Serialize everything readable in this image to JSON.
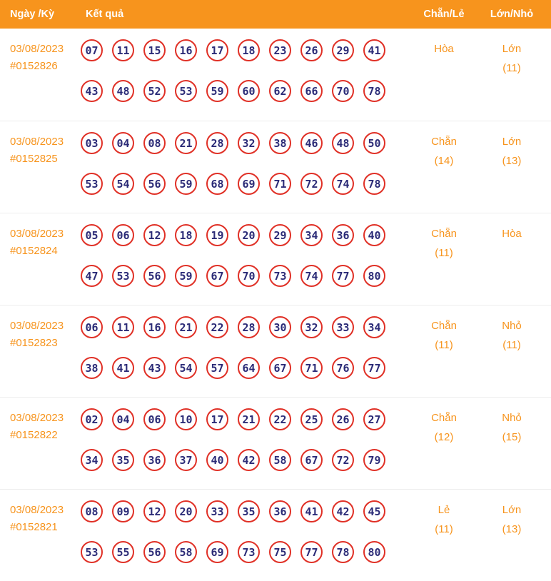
{
  "colors": {
    "accent": "#F7941D",
    "header_bg": "#F7941D",
    "ball_border": "#E03026",
    "ball_text": "#2B2B77",
    "divider": "#EDEDED"
  },
  "header": {
    "col_date": "Ngày /Kỳ",
    "col_result": "Kết quả",
    "col_even_odd": "Chẵn/Lẻ",
    "col_big_small": "Lớn/Nhỏ"
  },
  "rows": [
    {
      "date": "03/08/2023",
      "draw_id": "#0152826",
      "numbers": [
        "07",
        "11",
        "15",
        "16",
        "17",
        "18",
        "23",
        "26",
        "29",
        "41",
        "43",
        "48",
        "52",
        "53",
        "59",
        "60",
        "62",
        "66",
        "70",
        "78"
      ],
      "even_odd": "Hòa",
      "even_odd_count": "",
      "big_small": "Lớn",
      "big_small_count": "(11)"
    },
    {
      "date": "03/08/2023",
      "draw_id": "#0152825",
      "numbers": [
        "03",
        "04",
        "08",
        "21",
        "28",
        "32",
        "38",
        "46",
        "48",
        "50",
        "53",
        "54",
        "56",
        "59",
        "68",
        "69",
        "71",
        "72",
        "74",
        "78"
      ],
      "even_odd": "Chẵn",
      "even_odd_count": "(14)",
      "big_small": "Lớn",
      "big_small_count": "(13)"
    },
    {
      "date": "03/08/2023",
      "draw_id": "#0152824",
      "numbers": [
        "05",
        "06",
        "12",
        "18",
        "19",
        "20",
        "29",
        "34",
        "36",
        "40",
        "47",
        "53",
        "56",
        "59",
        "67",
        "70",
        "73",
        "74",
        "77",
        "80"
      ],
      "even_odd": "Chẵn",
      "even_odd_count": "(11)",
      "big_small": "Hòa",
      "big_small_count": ""
    },
    {
      "date": "03/08/2023",
      "draw_id": "#0152823",
      "numbers": [
        "06",
        "11",
        "16",
        "21",
        "22",
        "28",
        "30",
        "32",
        "33",
        "34",
        "38",
        "41",
        "43",
        "54",
        "57",
        "64",
        "67",
        "71",
        "76",
        "77"
      ],
      "even_odd": "Chẵn",
      "even_odd_count": "(11)",
      "big_small": "Nhỏ",
      "big_small_count": "(11)"
    },
    {
      "date": "03/08/2023",
      "draw_id": "#0152822",
      "numbers": [
        "02",
        "04",
        "06",
        "10",
        "17",
        "21",
        "22",
        "25",
        "26",
        "27",
        "34",
        "35",
        "36",
        "37",
        "40",
        "42",
        "58",
        "67",
        "72",
        "79"
      ],
      "even_odd": "Chẵn",
      "even_odd_count": "(12)",
      "big_small": "Nhỏ",
      "big_small_count": "(15)"
    },
    {
      "date": "03/08/2023",
      "draw_id": "#0152821",
      "numbers": [
        "08",
        "09",
        "12",
        "20",
        "33",
        "35",
        "36",
        "41",
        "42",
        "45",
        "53",
        "55",
        "56",
        "58",
        "69",
        "73",
        "75",
        "77",
        "78",
        "80"
      ],
      "even_odd": "Lẻ",
      "even_odd_count": "(11)",
      "big_small": "Lớn",
      "big_small_count": "(13)"
    }
  ]
}
